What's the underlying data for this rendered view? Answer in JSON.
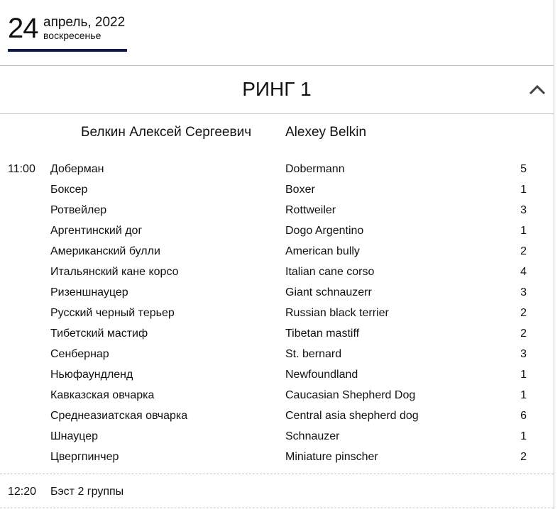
{
  "date": {
    "day": "24",
    "month_year": "апрель, 2022",
    "weekday": "воскресенье"
  },
  "ring": {
    "title": "РИНГ 1",
    "collapse_icon": "chevron-up-icon"
  },
  "judge": {
    "name_ru": "Белкин Алексей Сергеевич",
    "name_en": "Alexey Belkin"
  },
  "schedule": [
    {
      "time": "11:00",
      "breeds": [
        {
          "ru": "Доберман",
          "en": "Dobermann",
          "count": "5"
        },
        {
          "ru": "Боксер",
          "en": "Boxer",
          "count": "1"
        },
        {
          "ru": "Ротвейлер",
          "en": "Rottweiler",
          "count": "3"
        },
        {
          "ru": "Аргентинский дог",
          "en": "Dogo Argentino",
          "count": "1"
        },
        {
          "ru": "Американский булли",
          "en": "American bully",
          "count": "2"
        },
        {
          "ru": "Итальянский кане корсо",
          "en": "Italian cane corso",
          "count": "4"
        },
        {
          "ru": "Ризеншнауцер",
          "en": "Giant schnauzerr",
          "count": "3"
        },
        {
          "ru": "Русский черный терьер",
          "en": "Russian black terrier",
          "count": "2"
        },
        {
          "ru": "Тибетский мастиф",
          "en": "Tibetan mastiff",
          "count": "2"
        },
        {
          "ru": "Сенбернар",
          "en": "St. bernard",
          "count": "3"
        },
        {
          "ru": "Ньюфаундленд",
          "en": "Newfoundland",
          "count": "1"
        },
        {
          "ru": "Кавказская овчарка",
          "en": "Caucasian Shepherd Dog",
          "count": "1"
        },
        {
          "ru": "Среднеазиатская овчарка",
          "en": "Central asia shepherd dog",
          "count": "6"
        },
        {
          "ru": "Шнауцер",
          "en": "Schnauzer",
          "count": "1"
        },
        {
          "ru": "Цвергпинчер",
          "en": "Miniature pinscher",
          "count": "2"
        }
      ]
    },
    {
      "time": "12:20",
      "title": "Бэст 2 группы"
    }
  ]
}
